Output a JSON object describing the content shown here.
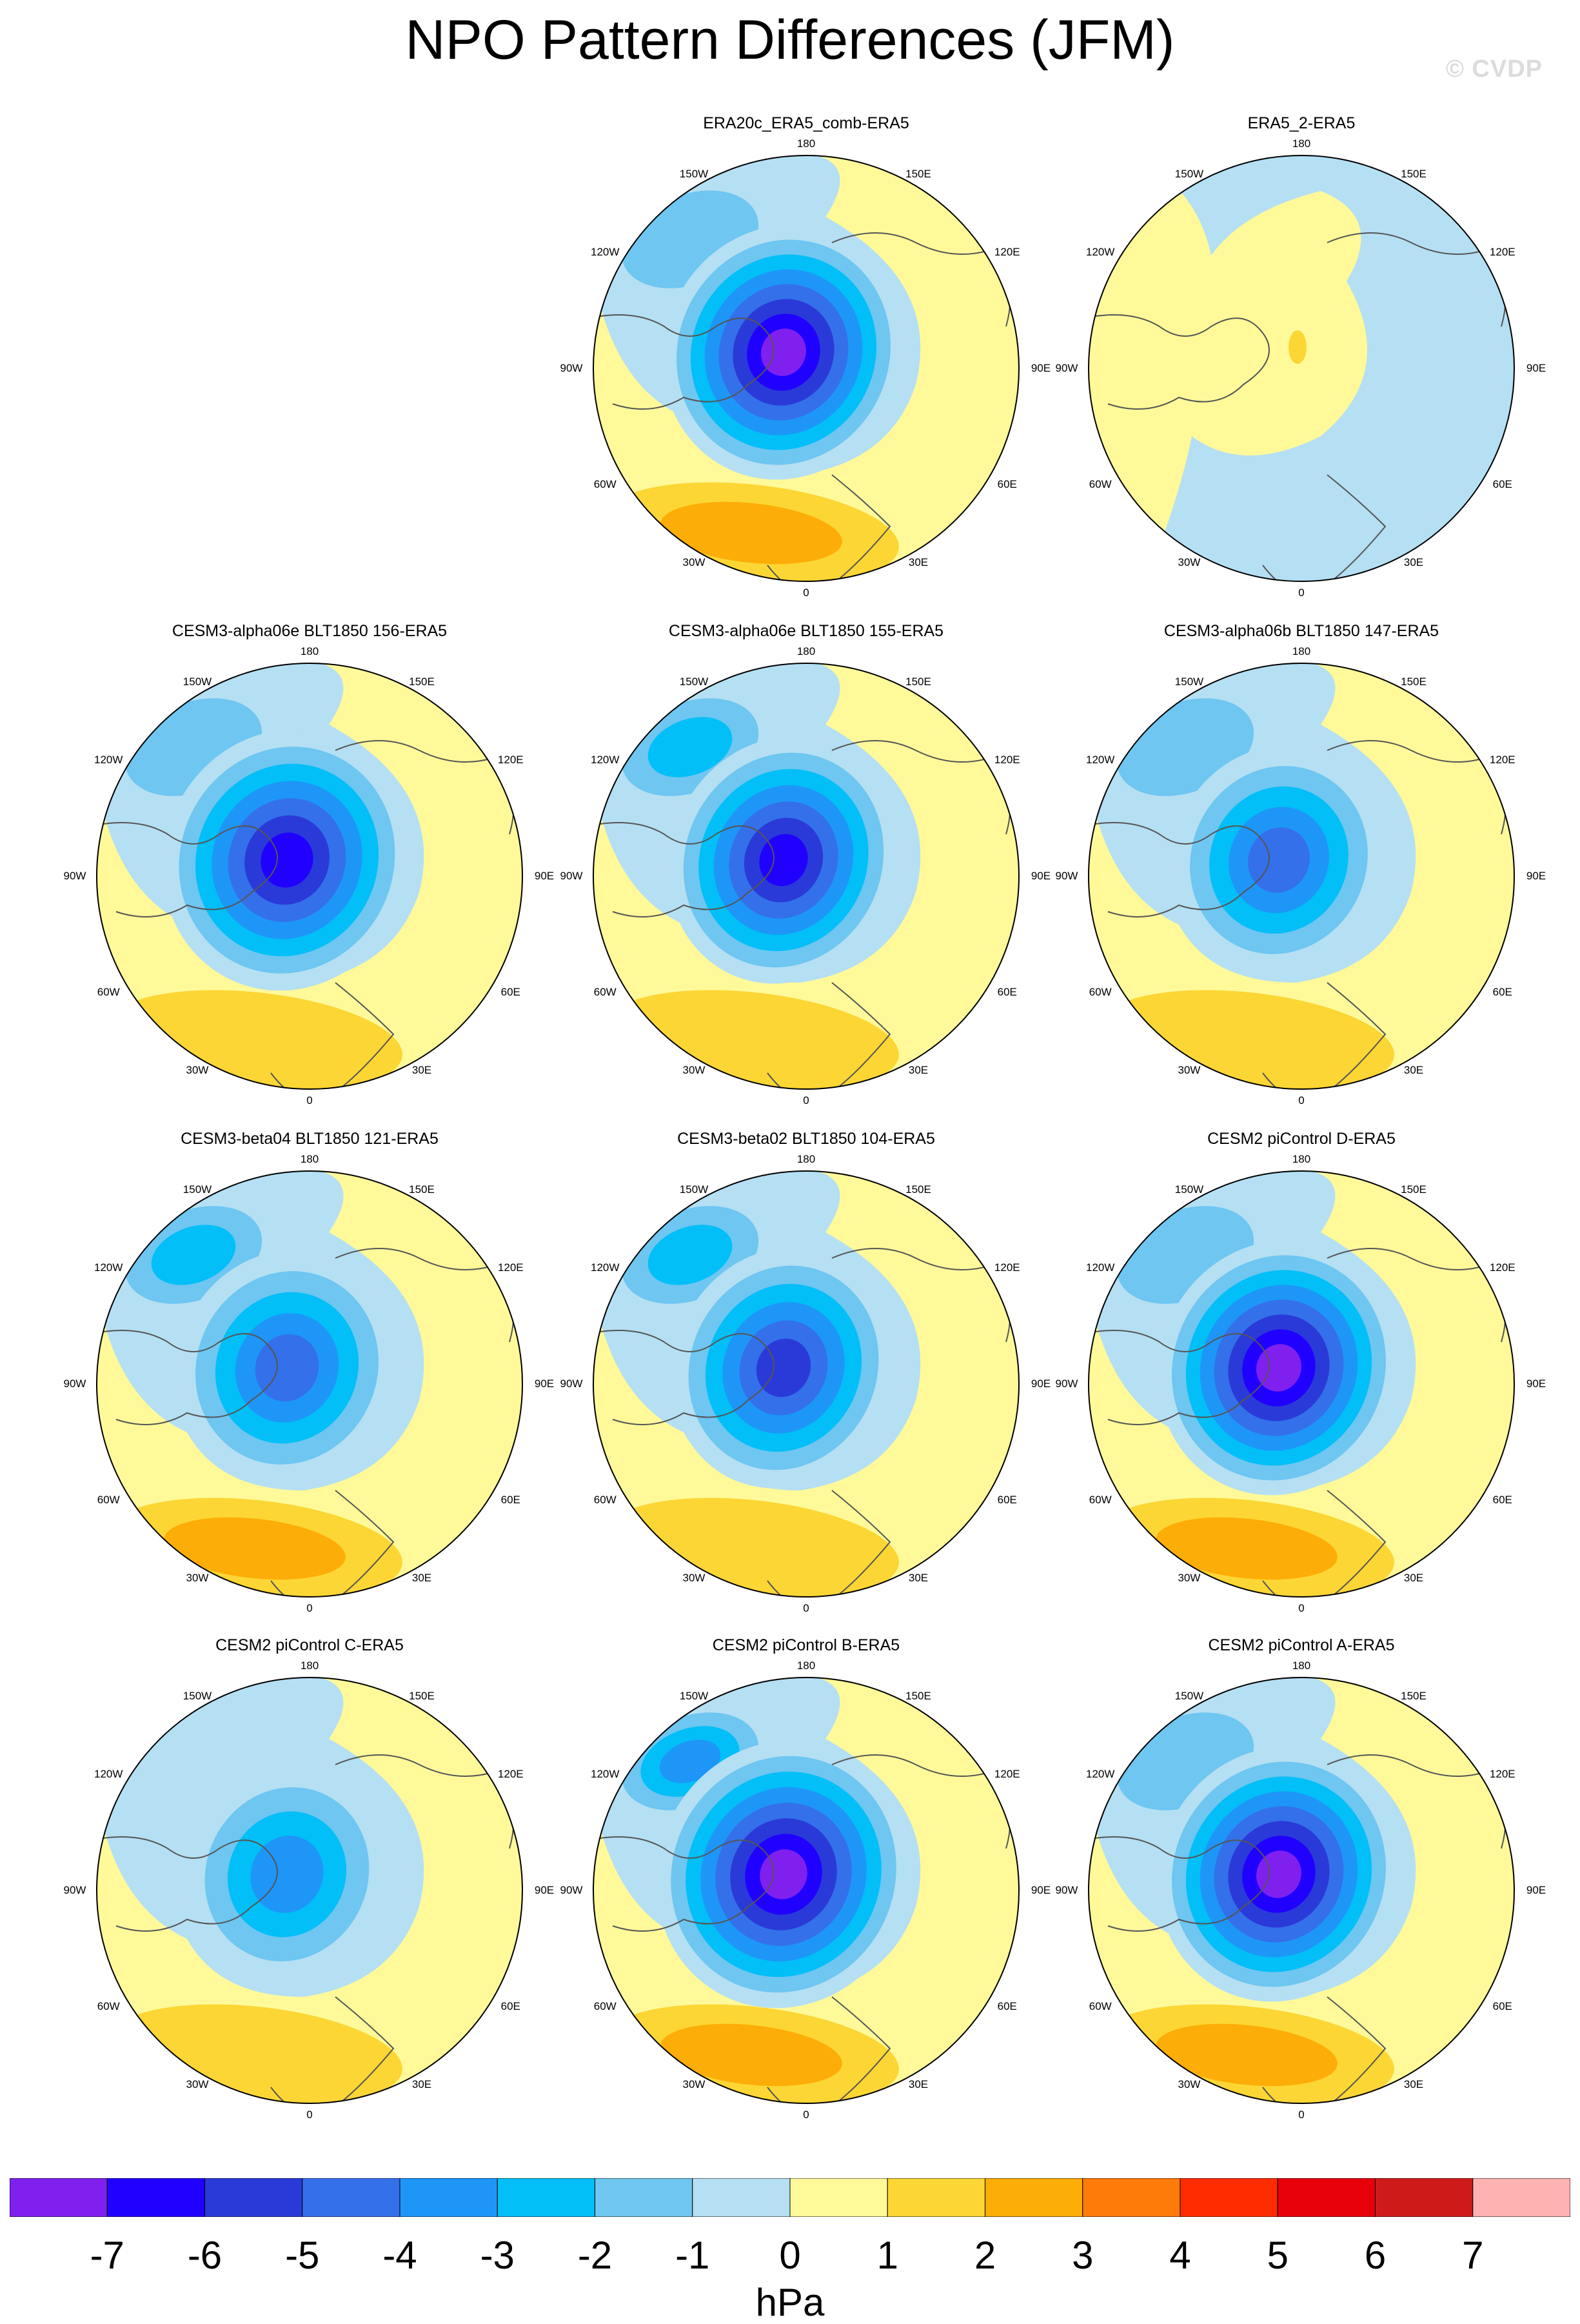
{
  "title": "NPO Pattern Differences (JFM)",
  "watermark": "© CVDP",
  "lon_labels": {
    "l180": "180",
    "l150w": "150W",
    "l150e": "150E",
    "l120w": "120W",
    "l120e": "120E",
    "l90w": "90W",
    "l90e": "90E",
    "l60w": "60W",
    "l60e": "60E",
    "l30w": "30W",
    "l30e": "30E",
    "l0": "0"
  },
  "panels": [
    {
      "name": "ERA20c_ERA5_comb-ERA5",
      "row": 0,
      "col": 1
    },
    {
      "name": "ERA5_2-ERA5",
      "row": 0,
      "col": 2
    },
    {
      "name": "CESM3-alpha06e BLT1850 156-ERA5",
      "row": 1,
      "col": 0
    },
    {
      "name": "CESM3-alpha06e BLT1850 155-ERA5",
      "row": 1,
      "col": 1
    },
    {
      "name": "CESM3-alpha06b BLT1850 147-ERA5",
      "row": 1,
      "col": 2
    },
    {
      "name": "CESM3-beta04 BLT1850 121-ERA5",
      "row": 2,
      "col": 0
    },
    {
      "name": "CESM3-beta02 BLT1850 104-ERA5",
      "row": 2,
      "col": 1
    },
    {
      "name": "CESM2 piControl D-ERA5",
      "row": 2,
      "col": 2
    },
    {
      "name": "CESM2 piControl C-ERA5",
      "row": 3,
      "col": 0
    },
    {
      "name": "CESM2 piControl B-ERA5",
      "row": 3,
      "col": 1
    },
    {
      "name": "CESM2 piControl A-ERA5",
      "row": 3,
      "col": 2
    }
  ],
  "colorbar": {
    "units": "hPa",
    "ticks": [
      "-7",
      "-6",
      "-5",
      "-4",
      "-3",
      "-2",
      "-1",
      "0",
      "1",
      "2",
      "3",
      "4",
      "5",
      "6",
      "7"
    ],
    "colors": [
      "#8020ee",
      "#2000ff",
      "#2a3ad8",
      "#3470ea",
      "#1e96f8",
      "#02bff7",
      "#6ec6f1",
      "#b5dff3",
      "#fff99a",
      "#fcd634",
      "#fdad07",
      "#fe7a09",
      "#ff2c00",
      "#e8000b",
      "#cf1a1a",
      "#ffb2b2"
    ]
  },
  "colors": {
    "land_outline": "#555555",
    "rim": "#000000"
  }
}
